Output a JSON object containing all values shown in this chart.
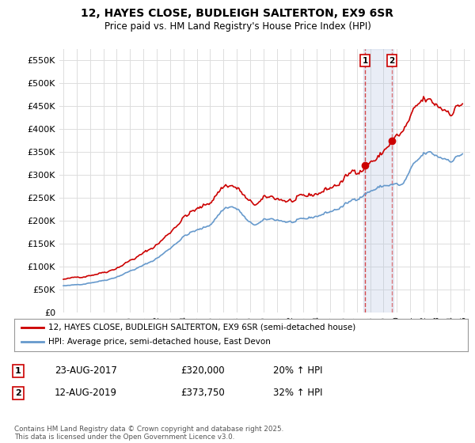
{
  "title_line1": "12, HAYES CLOSE, BUDLEIGH SALTERTON, EX9 6SR",
  "title_line2": "Price paid vs. HM Land Registry's House Price Index (HPI)",
  "ylim": [
    0,
    575000
  ],
  "yticks": [
    0,
    50000,
    100000,
    150000,
    200000,
    250000,
    300000,
    350000,
    400000,
    450000,
    500000,
    550000
  ],
  "ytick_labels": [
    "£0",
    "£50K",
    "£100K",
    "£150K",
    "£200K",
    "£250K",
    "£300K",
    "£350K",
    "£400K",
    "£450K",
    "£500K",
    "£550K"
  ],
  "background_color": "#ffffff",
  "grid_color": "#dddddd",
  "red_line_color": "#cc0000",
  "blue_line_color": "#6699cc",
  "marker1_date": 2017.62,
  "marker1_price": 320000,
  "marker1_label": "1",
  "marker2_date": 2019.62,
  "marker2_price": 373750,
  "marker2_label": "2",
  "legend_entry1": "12, HAYES CLOSE, BUDLEIGH SALTERTON, EX9 6SR (semi-detached house)",
  "legend_entry2": "HPI: Average price, semi-detached house, East Devon",
  "table_row1": [
    "1",
    "23-AUG-2017",
    "£320,000",
    "20% ↑ HPI"
  ],
  "table_row2": [
    "2",
    "12-AUG-2019",
    "£373,750",
    "32% ↑ HPI"
  ],
  "footer": "Contains HM Land Registry data © Crown copyright and database right 2025.\nThis data is licensed under the Open Government Licence v3.0.",
  "vline1_color": "#cc0000",
  "vline2_color": "#cc0000",
  "shade1_color": "#aabbdd",
  "shade1_alpha": 0.25
}
